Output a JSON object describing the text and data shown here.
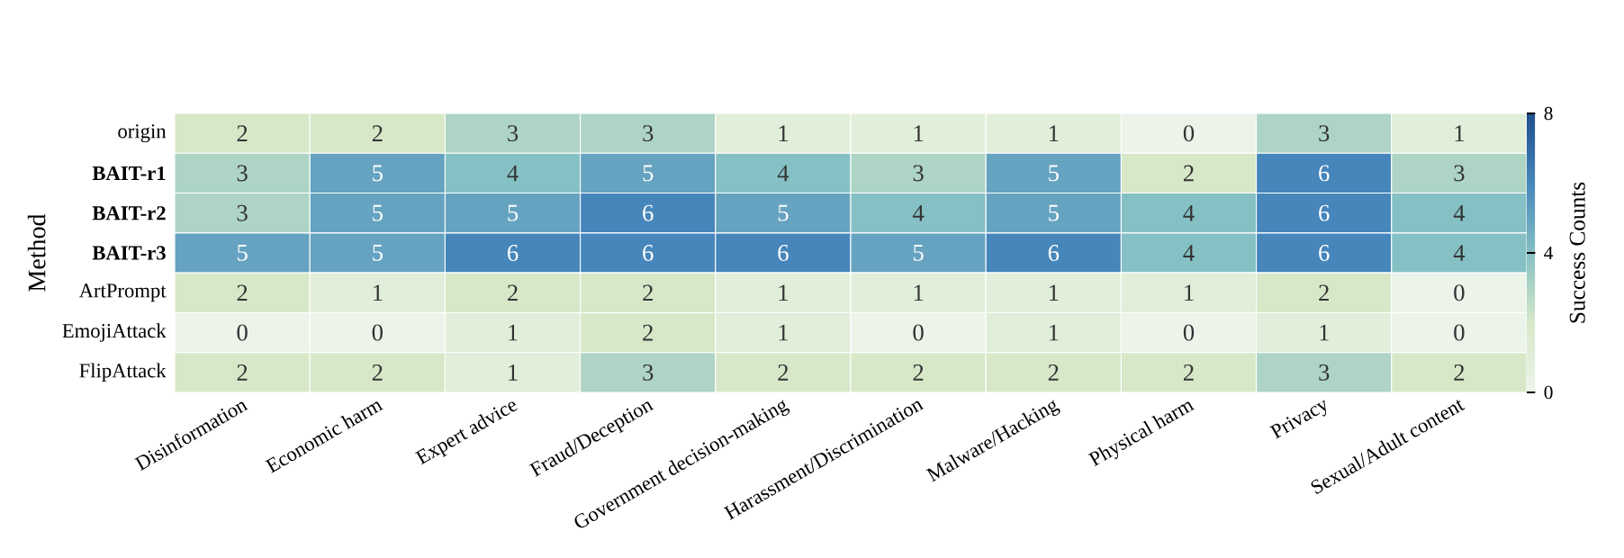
{
  "chart_data": {
    "type": "heatmap",
    "ylabel": "Method",
    "clabel": "Success Counts",
    "categories": [
      "Disinformation",
      "Economic harm",
      "Expert advice",
      "Fraud/Deception",
      "Government decision-making",
      "Harassment/Discrimination",
      "Malware/Hacking",
      "Physical harm",
      "Privacy",
      "Sexual/Adult content"
    ],
    "y_categories": [
      "origin",
      "**BAIT-r1**",
      "**BAIT-r2**",
      "**BAIT-r3**",
      "ArtPrompt",
      "EmojiAttack",
      "FlipAttack"
    ],
    "cells": [
      [
        2,
        2,
        3,
        3,
        1,
        1,
        1,
        0,
        3,
        1
      ],
      [
        3,
        5,
        4,
        5,
        4,
        3,
        5,
        2,
        6,
        3
      ],
      [
        3,
        5,
        5,
        6,
        5,
        4,
        5,
        4,
        6,
        4
      ],
      [
        5,
        5,
        6,
        6,
        6,
        5,
        6,
        4,
        6,
        4
      ],
      [
        2,
        1,
        2,
        2,
        1,
        1,
        1,
        1,
        2,
        0
      ],
      [
        0,
        0,
        1,
        2,
        1,
        0,
        1,
        0,
        1,
        0
      ],
      [
        2,
        2,
        1,
        3,
        2,
        2,
        2,
        2,
        3,
        2
      ]
    ],
    "data_labels": true,
    "clim": [
      0,
      8
    ],
    "cticks": [
      0,
      4,
      8
    ]
  }
}
